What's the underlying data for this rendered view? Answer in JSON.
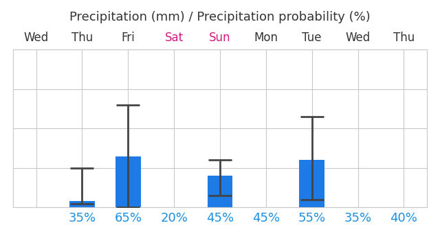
{
  "chart_data": {
    "type": "bar",
    "title": "Precipitation (mm) / Precipitation probability (%)",
    "categories": [
      "Wed",
      "Thu",
      "Fri",
      "Sat",
      "Sun",
      "Mon",
      "Tue",
      "Wed",
      "Thu"
    ],
    "values": [
      null,
      1.6,
      13,
      null,
      8,
      null,
      12,
      null,
      null
    ],
    "range_low": [
      null,
      1,
      0,
      null,
      3,
      null,
      2,
      null,
      null
    ],
    "range_high": [
      null,
      10,
      26,
      null,
      12,
      null,
      23,
      null,
      null
    ],
    "precipitation_probability": [
      null,
      35,
      65,
      20,
      45,
      45,
      55,
      35,
      40
    ],
    "precipitation_probability_labels": [
      null,
      "35%",
      "65%",
      "20%",
      "45%",
      "45%",
      "55%",
      "35%",
      "40%"
    ],
    "color": "#1e7be6",
    "ylim": [
      0,
      40
    ],
    "yticks": [
      0,
      10,
      20,
      30,
      40
    ],
    "grid": true,
    "tick_labels": "x"
  }
}
